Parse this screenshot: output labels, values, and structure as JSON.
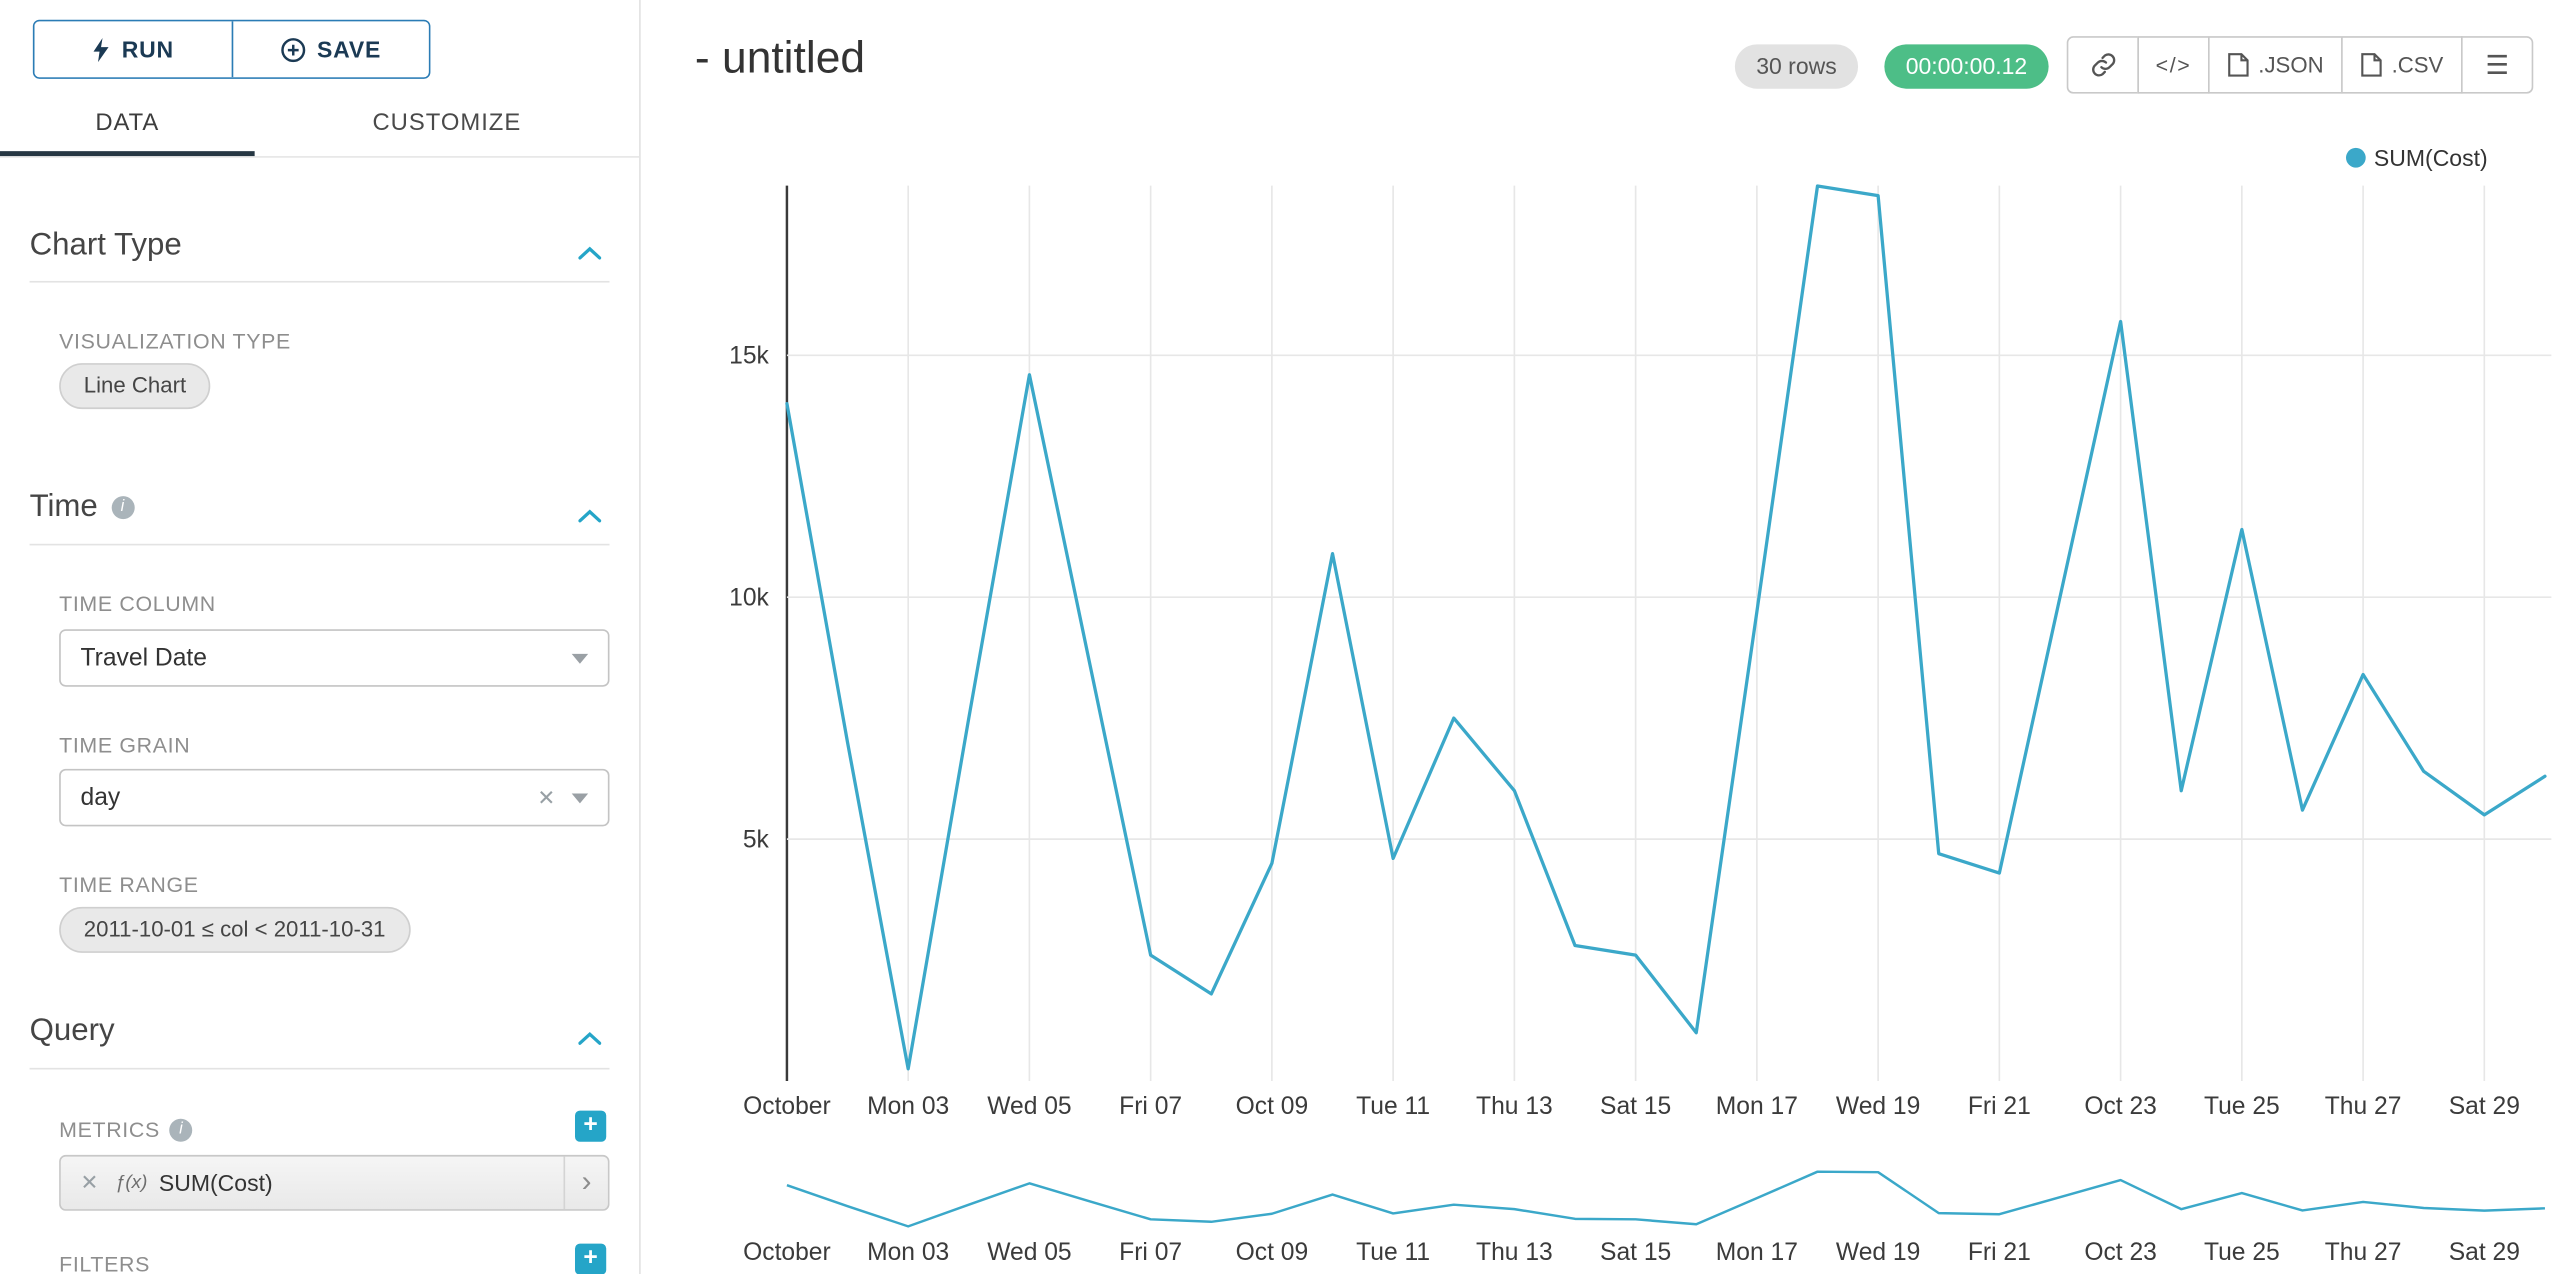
{
  "toolbar": {
    "run_label": "RUN",
    "save_label": "SAVE"
  },
  "tabs": {
    "data": "DATA",
    "customize": "CUSTOMIZE"
  },
  "sidebar": {
    "chart_type_section": {
      "title": "Chart Type",
      "viz_type_label": "VISUALIZATION TYPE",
      "viz_type_value": "Line Chart"
    },
    "time_section": {
      "title": "Time",
      "time_column_label": "TIME COLUMN",
      "time_column_value": "Travel Date",
      "time_grain_label": "TIME GRAIN",
      "time_grain_value": "day",
      "time_range_label": "TIME RANGE",
      "time_range_value": "2011-10-01 ≤ col < 2011-10-31"
    },
    "query_section": {
      "title": "Query",
      "metrics_label": "METRICS",
      "metric_function_prefix": "ƒ(x)",
      "metric_value": "SUM(Cost)",
      "filters_label": "FILTERS"
    }
  },
  "header": {
    "title": "- untitled",
    "rows_badge": "30 rows",
    "timer_badge": "00:00:00.12",
    "json_label": ".JSON",
    "csv_label": ".CSV"
  },
  "icons": {
    "code": "</>",
    "menu": "☰",
    "clear": "✕",
    "chevron_right": "›",
    "info": "i",
    "plus": "+"
  },
  "colors": {
    "line": "#3ba8c9",
    "accent": "#25a5c8",
    "timer_green": "#4dbe87"
  },
  "chart_data": {
    "type": "line",
    "title": "",
    "legend_position": "top-right",
    "grid": true,
    "has_range_selector": true,
    "x": [
      "2011-10-01",
      "2011-10-02",
      "2011-10-03",
      "2011-10-04",
      "2011-10-05",
      "2011-10-06",
      "2011-10-07",
      "2011-10-08",
      "2011-10-09",
      "2011-10-10",
      "2011-10-11",
      "2011-10-12",
      "2011-10-13",
      "2011-10-14",
      "2011-10-15",
      "2011-10-16",
      "2011-10-17",
      "2011-10-18",
      "2011-10-19",
      "2011-10-20",
      "2011-10-21",
      "2011-10-22",
      "2011-10-23",
      "2011-10-24",
      "2011-10-25",
      "2011-10-26",
      "2011-10-27",
      "2011-10-28",
      "2011-10-29",
      "2011-10-30"
    ],
    "series": [
      {
        "name": "SUM(Cost)",
        "values": [
          14000,
          7000,
          250,
          7500,
          14600,
          8600,
          2600,
          1800,
          4500,
          10900,
          4600,
          7500,
          6000,
          2800,
          2600,
          1000,
          9700,
          18500,
          18300,
          4700,
          4300,
          10000,
          15700,
          6000,
          11400,
          5600,
          8400,
          6400,
          5500,
          6300
        ]
      }
    ],
    "x_tick_labels": [
      "October",
      "Mon 03",
      "Wed 05",
      "Fri 07",
      "Oct 09",
      "Tue 11",
      "Thu 13",
      "Sat 15",
      "Mon 17",
      "Wed 19",
      "Fri 21",
      "Oct 23",
      "Tue 25",
      "Thu 27",
      "Sat 29"
    ],
    "y_ticks": [
      5000,
      10000,
      15000
    ],
    "y_tick_labels": [
      "5k",
      "10k",
      "15k"
    ],
    "ylim": [
      0,
      18600
    ],
    "xlabel": "",
    "ylabel": ""
  }
}
